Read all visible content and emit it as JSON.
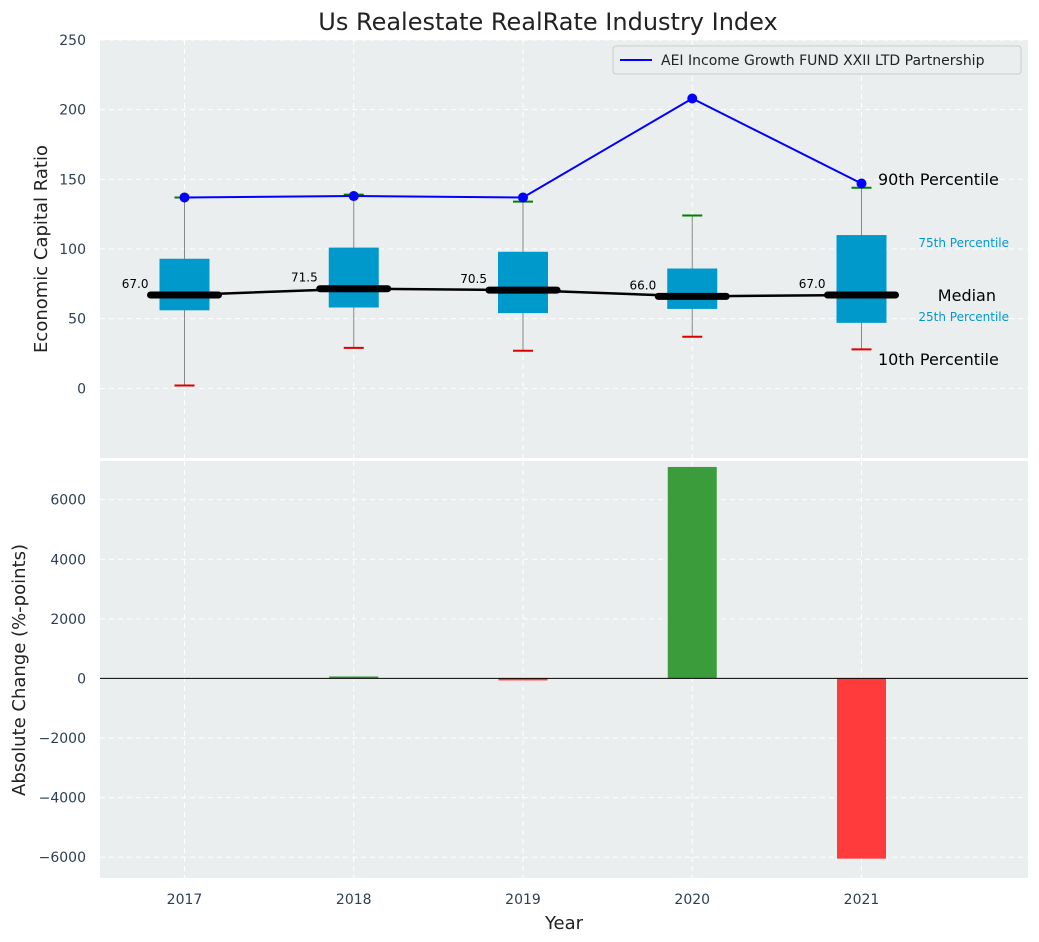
{
  "chart_data": [
    {
      "type": "box",
      "title": "Us Realestate RealRate Industry Index",
      "ylabel": "Economic Capital Ratio",
      "ylim": [
        -50,
        250
      ],
      "yticks": [
        0,
        50,
        100,
        150,
        200,
        250
      ],
      "grid": true,
      "legend_position": "top-right",
      "categories": [
        "2017",
        "2018",
        "2019",
        "2020",
        "2021"
      ],
      "boxes": [
        {
          "year": "2017",
          "p10": 2,
          "q1": 56,
          "median": 67.0,
          "q3": 93,
          "p90": 137
        },
        {
          "year": "2018",
          "p10": 29,
          "q1": 58,
          "median": 71.5,
          "q3": 101,
          "p90": 139
        },
        {
          "year": "2019",
          "p10": 27,
          "q1": 54,
          "median": 70.5,
          "q3": 98,
          "p90": 134
        },
        {
          "year": "2020",
          "p10": 37,
          "q1": 57,
          "median": 66.0,
          "q3": 86,
          "p90": 124
        },
        {
          "year": "2021",
          "p10": 28,
          "q1": 47,
          "median": 67.0,
          "q3": 110,
          "p90": 144
        }
      ],
      "median_labels": [
        "67.0",
        "71.5",
        "70.5",
        "66.0",
        "67.0"
      ],
      "series": [
        {
          "name": "AEI Income Growth FUND XXII LTD Partnership",
          "values": [
            137,
            138,
            137,
            208,
            147
          ],
          "color": "#0000ff"
        }
      ],
      "annotations": {
        "p90": "90th Percentile",
        "q3": "75th Percentile",
        "median": "Median",
        "q1": "25th Percentile",
        "p10": "10th Percentile"
      }
    },
    {
      "type": "bar",
      "xlabel": "Year",
      "ylabel": "Absolute Change (%-points)",
      "ylim": [
        -6700,
        7300
      ],
      "yticks": [
        -6000,
        -4000,
        -2000,
        0,
        2000,
        4000,
        6000
      ],
      "ytick_labels": [
        "−6000",
        "−4000",
        "−2000",
        "0",
        "2000",
        "4000",
        "6000"
      ],
      "categories": [
        "2017",
        "2018",
        "2019",
        "2020",
        "2021"
      ],
      "values": [
        0,
        50,
        -60,
        7100,
        -6050
      ],
      "positive_color": "#3a9c3a",
      "negative_color": "#ff3b3b"
    }
  ],
  "colors": {
    "plot_bg": "#ebeeee",
    "box_fill": "#0099cc",
    "p90_cap": "#008000",
    "p10_cap": "#dd0000",
    "whisker": "#888888",
    "median_line": "#000000"
  }
}
